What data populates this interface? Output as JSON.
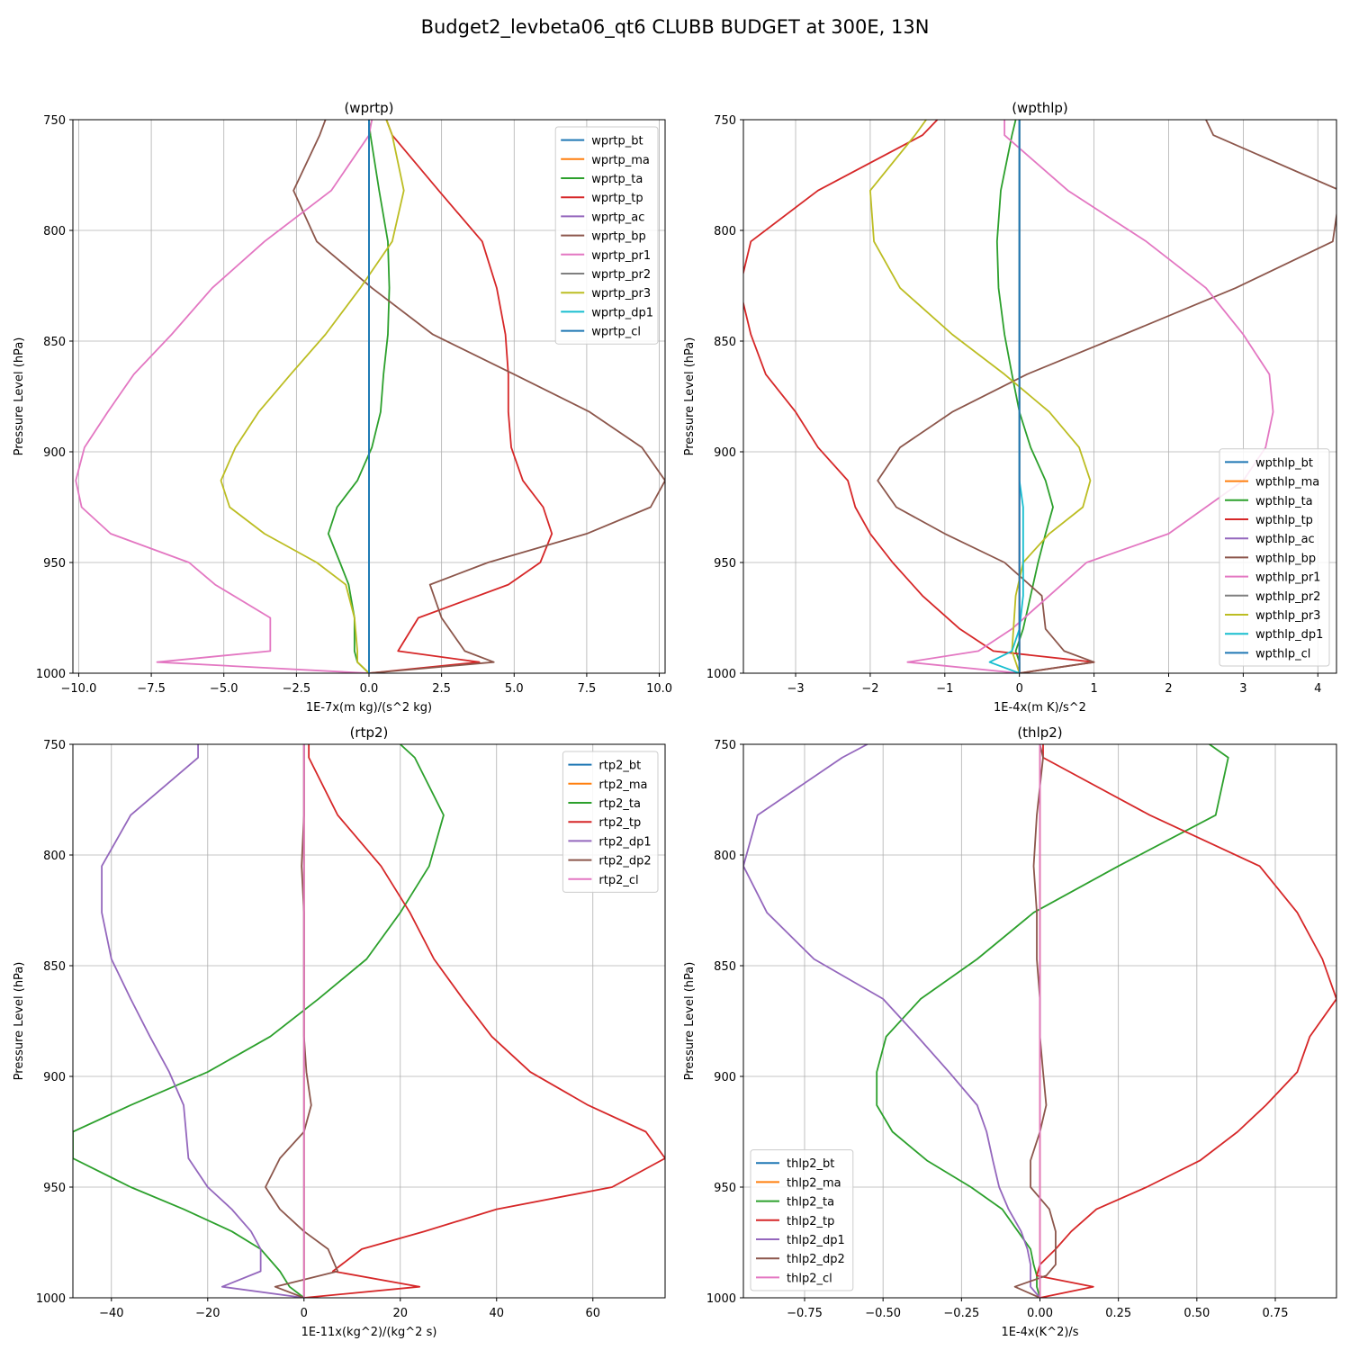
{
  "figure": {
    "suptitle": "Budget2_levbeta06_qt6 CLUBB BUDGET at 300E, 13N",
    "ylabel": "Pressure Level (hPa)"
  },
  "colors": {
    "blue": "#1f77b4",
    "orange": "#ff7f0e",
    "green": "#2ca02c",
    "red": "#d62728",
    "purple": "#9467bd",
    "brown": "#8c564b",
    "pink": "#e377c2",
    "gray": "#7f7f7f",
    "olive": "#bcbd22",
    "cyan": "#17becf",
    "grid": "#b0b0b0"
  },
  "chart_data": [
    {
      "type": "line",
      "title": "(wprtp)",
      "xlabel": "1E-7x(m kg)/(s^2 kg)",
      "ylabel": "Pressure Level (hPa)",
      "xlim": [
        -10.2,
        10.2
      ],
      "ylim": [
        1000,
        750
      ],
      "xticks": [
        -10.0,
        -7.5,
        -5.0,
        -2.5,
        0.0,
        2.5,
        5.0,
        7.5,
        10.0
      ],
      "xtick_labels": [
        "−10.0",
        "−7.5",
        "−5.0",
        "−2.5",
        "0.0",
        "2.5",
        "5.0",
        "7.5",
        "10.0"
      ],
      "yticks": [
        750,
        800,
        850,
        900,
        950,
        1000
      ],
      "grid": true,
      "legend_position": "upper right",
      "levels": [
        1000,
        995,
        990,
        975,
        960,
        950,
        937,
        925,
        913,
        898,
        882,
        865,
        847,
        826,
        805,
        782,
        757,
        750
      ],
      "series": [
        {
          "name": "wprtp_bt",
          "color": "#1f77b4",
          "values": [
            0,
            0,
            0,
            0,
            0,
            0,
            0,
            0,
            0,
            0,
            0,
            0,
            0,
            0,
            0,
            0,
            0,
            0
          ]
        },
        {
          "name": "wprtp_ma",
          "color": "#ff7f0e",
          "values": [
            0,
            0,
            0,
            0,
            0,
            0,
            0,
            0,
            0,
            0,
            0,
            0,
            0,
            0,
            0,
            0,
            0,
            0
          ]
        },
        {
          "name": "wprtp_ta",
          "color": "#2ca02c",
          "values": [
            0,
            -0.4,
            -0.5,
            -0.5,
            -0.7,
            -1.0,
            -1.4,
            -1.1,
            -0.4,
            0.1,
            0.4,
            0.5,
            0.65,
            0.7,
            0.65,
            0.35,
            0.05,
            0
          ]
        },
        {
          "name": "wprtp_tp",
          "color": "#d62728",
          "values": [
            0,
            3.8,
            1.0,
            1.7,
            4.8,
            5.9,
            6.3,
            6.0,
            5.3,
            4.9,
            4.8,
            4.8,
            4.7,
            4.4,
            3.9,
            2.4,
            0.8,
            0.6
          ]
        },
        {
          "name": "wprtp_ac",
          "color": "#9467bd",
          "values": [
            0,
            0,
            0,
            0,
            0,
            0,
            0,
            0,
            0,
            0,
            0,
            0,
            0,
            0,
            0,
            0,
            0,
            0
          ]
        },
        {
          "name": "wprtp_bp",
          "color": "#8c564b",
          "values": [
            0,
            4.3,
            3.3,
            2.5,
            2.1,
            4.1,
            7.5,
            9.7,
            10.2,
            9.4,
            7.6,
            5.0,
            2.2,
            0.1,
            -1.8,
            -2.6,
            -1.7,
            -1.5
          ]
        },
        {
          "name": "wprtp_pr1",
          "color": "#e377c2",
          "values": [
            0,
            -7.3,
            -3.4,
            -3.4,
            -5.3,
            -6.2,
            -8.9,
            -9.9,
            -10.1,
            -9.8,
            -9.0,
            -8.1,
            -6.8,
            -5.4,
            -3.6,
            -1.3,
            0,
            0.1
          ]
        },
        {
          "name": "wprtp_pr2",
          "color": "#7f7f7f",
          "values": [
            0,
            0,
            0,
            0,
            0,
            0,
            0,
            0,
            0,
            0,
            0,
            0,
            0,
            0,
            0,
            0,
            0,
            0
          ]
        },
        {
          "name": "wprtp_pr3",
          "color": "#bcbd22",
          "values": [
            0,
            -0.4,
            -0.4,
            -0.5,
            -0.8,
            -1.8,
            -3.6,
            -4.8,
            -5.1,
            -4.6,
            -3.8,
            -2.7,
            -1.5,
            -0.3,
            0.8,
            1.2,
            0.8,
            0.6
          ]
        },
        {
          "name": "wprtp_dp1",
          "color": "#17becf",
          "values": [
            0,
            0,
            0,
            0,
            0,
            0,
            0,
            0,
            0,
            0,
            0,
            0,
            0,
            0,
            0,
            0,
            0,
            0
          ]
        },
        {
          "name": "wprtp_cl",
          "color": "#1f77b4",
          "values": [
            0,
            0,
            0,
            0,
            0,
            0,
            0,
            0,
            0,
            0,
            0,
            0,
            0,
            0,
            0,
            0,
            0,
            0
          ]
        }
      ]
    },
    {
      "type": "line",
      "title": "(wpthlp)",
      "xlabel": "1E-4x(m K)/s^2",
      "ylabel": "Pressure Level (hPa)",
      "xlim": [
        -3.7,
        4.25
      ],
      "ylim": [
        1000,
        750
      ],
      "xticks": [
        -3,
        -2,
        -1,
        0,
        1,
        2,
        3,
        4
      ],
      "xtick_labels": [
        "−3",
        "−2",
        "−1",
        "0",
        "1",
        "2",
        "3",
        "4"
      ],
      "yticks": [
        750,
        800,
        850,
        900,
        950,
        1000
      ],
      "grid": true,
      "legend_position": "lower right",
      "levels": [
        1000,
        995,
        990,
        980,
        965,
        950,
        937,
        925,
        913,
        898,
        882,
        865,
        847,
        826,
        805,
        782,
        757,
        750
      ],
      "series": [
        {
          "name": "wpthlp_bt",
          "color": "#1f77b4",
          "values": [
            0,
            0,
            0,
            0,
            0,
            0,
            0,
            0,
            0,
            0,
            0,
            0,
            0,
            0,
            0,
            0,
            0,
            0
          ]
        },
        {
          "name": "wpthlp_ma",
          "color": "#ff7f0e",
          "values": [
            0,
            0,
            0,
            0,
            0,
            0,
            0,
            0,
            0,
            0,
            0,
            0,
            0,
            0,
            0,
            0,
            0,
            0
          ]
        },
        {
          "name": "wpthlp_ta",
          "color": "#2ca02c",
          "values": [
            0,
            0,
            -0.05,
            0.05,
            0.15,
            0.25,
            0.35,
            0.45,
            0.35,
            0.15,
            0,
            -0.1,
            -0.2,
            -0.28,
            -0.3,
            -0.25,
            -0.1,
            -0.05
          ]
        },
        {
          "name": "wpthlp_tp",
          "color": "#d62728",
          "values": [
            0,
            1.0,
            -0.35,
            -0.8,
            -1.3,
            -1.7,
            -2.0,
            -2.2,
            -2.3,
            -2.7,
            -3.0,
            -3.4,
            -3.6,
            -3.75,
            -3.6,
            -2.7,
            -1.3,
            -1.1
          ]
        },
        {
          "name": "wpthlp_ac",
          "color": "#9467bd",
          "values": [
            0,
            0,
            0,
            0,
            0,
            0,
            0,
            0,
            0,
            0,
            0,
            0,
            0,
            0,
            0,
            0,
            0,
            0
          ]
        },
        {
          "name": "wpthlp_bp",
          "color": "#8c564b",
          "values": [
            0,
            1.0,
            0.6,
            0.35,
            0.3,
            -0.2,
            -1.0,
            -1.65,
            -1.9,
            -1.6,
            -0.9,
            0.1,
            1.4,
            2.9,
            4.2,
            4.3,
            2.6,
            2.5
          ]
        },
        {
          "name": "wpthlp_pr1",
          "color": "#e377c2",
          "values": [
            0,
            -1.5,
            -0.55,
            -0.1,
            0.4,
            0.9,
            2.0,
            2.5,
            3.0,
            3.3,
            3.4,
            3.35,
            3.0,
            2.5,
            1.7,
            0.65,
            -0.2,
            -0.2
          ]
        },
        {
          "name": "wpthlp_pr2",
          "color": "#7f7f7f",
          "values": [
            0,
            0,
            0,
            0,
            0,
            0,
            0,
            0,
            0,
            0,
            0,
            0,
            0,
            0,
            0,
            0,
            0,
            0
          ]
        },
        {
          "name": "wpthlp_pr3",
          "color": "#bcbd22",
          "values": [
            0,
            -0.05,
            -0.1,
            -0.08,
            -0.05,
            0.05,
            0.4,
            0.85,
            0.95,
            0.8,
            0.4,
            -0.2,
            -0.9,
            -1.6,
            -1.95,
            -2.0,
            -1.4,
            -1.25
          ]
        },
        {
          "name": "wpthlp_dp1",
          "color": "#17becf",
          "values": [
            0,
            -0.4,
            -0.1,
            0,
            0.05,
            0.05,
            0.05,
            0.05,
            0,
            0,
            0,
            0,
            0,
            0,
            0,
            0,
            0,
            0
          ]
        },
        {
          "name": "wpthlp_cl",
          "color": "#1f77b4",
          "values": [
            0,
            0,
            0,
            0,
            0,
            0,
            0,
            0,
            0,
            0,
            0,
            0,
            0,
            0,
            0,
            0,
            0,
            0
          ]
        }
      ]
    },
    {
      "type": "line",
      "title": "(rtp2)",
      "xlabel": "1E-11x(kg^2)/(kg^2 s)",
      "ylabel": "Pressure Level (hPa)",
      "xlim": [
        -48,
        75
      ],
      "ylim": [
        1000,
        750
      ],
      "xticks": [
        -40,
        -20,
        0,
        20,
        40,
        60
      ],
      "xtick_labels": [
        "−40",
        "−20",
        "0",
        "20",
        "40",
        "60"
      ],
      "yticks": [
        750,
        800,
        850,
        900,
        950,
        1000
      ],
      "grid": true,
      "legend_position": "upper right",
      "levels": [
        1000,
        995,
        988,
        978,
        970,
        960,
        950,
        937,
        925,
        913,
        898,
        882,
        865,
        847,
        826,
        805,
        782,
        756,
        750
      ],
      "series": [
        {
          "name": "rtp2_bt",
          "color": "#1f77b4",
          "values": [
            0,
            0,
            0,
            0,
            0,
            0,
            0,
            0,
            0,
            0,
            0,
            0,
            0,
            0,
            0,
            0,
            0,
            0,
            0
          ]
        },
        {
          "name": "rtp2_ma",
          "color": "#ff7f0e",
          "values": [
            0,
            0,
            0,
            0,
            0,
            0,
            0,
            0,
            0,
            0,
            0,
            0,
            0,
            0,
            0,
            0,
            0,
            0,
            0
          ]
        },
        {
          "name": "rtp2_ta",
          "color": "#2ca02c",
          "values": [
            0,
            -3,
            -5,
            -9,
            -15,
            -25,
            -36,
            -48,
            -48,
            -36,
            -20,
            -7,
            3,
            13,
            20,
            26,
            29,
            23,
            20
          ]
        },
        {
          "name": "rtp2_tp",
          "color": "#d62728",
          "values": [
            0,
            24,
            6,
            12,
            25,
            40,
            64,
            75,
            71,
            59,
            47,
            39,
            33,
            27,
            22,
            16,
            7,
            1,
            1
          ]
        },
        {
          "name": "rtp2_dp1",
          "color": "#9467bd",
          "values": [
            0,
            -17,
            -9,
            -9,
            -11,
            -15,
            -20,
            -24,
            -24.5,
            -25,
            -28,
            -32,
            -36,
            -40,
            -42,
            -42,
            -36,
            -22,
            -22
          ]
        },
        {
          "name": "rtp2_dp2",
          "color": "#8c564b",
          "values": [
            0,
            -6,
            7,
            5,
            0,
            -5,
            -8,
            -5,
            0,
            1.5,
            0.5,
            0,
            0,
            0,
            0,
            -0.5,
            0,
            0,
            0
          ]
        },
        {
          "name": "rtp2_cl",
          "color": "#e377c2",
          "values": [
            0,
            0,
            0,
            0,
            0,
            0,
            0,
            0,
            0,
            0,
            0,
            0,
            0,
            0,
            0,
            0,
            0,
            0,
            0
          ]
        }
      ]
    },
    {
      "type": "line",
      "title": "(thlp2)",
      "xlabel": "1E-4x(K^2)/s",
      "ylabel": "Pressure Level (hPa)",
      "xlim": [
        -0.945,
        0.945
      ],
      "ylim": [
        1000,
        750
      ],
      "xticks": [
        -0.75,
        -0.5,
        -0.25,
        0.0,
        0.25,
        0.5,
        0.75
      ],
      "xtick_labels": [
        "−0.75",
        "−0.50",
        "−0.25",
        "0.00",
        "0.25",
        "0.50",
        "0.75"
      ],
      "yticks": [
        750,
        800,
        850,
        900,
        950,
        1000
      ],
      "grid": true,
      "legend_position": "lower left",
      "levels": [
        1000,
        995,
        990,
        985,
        978,
        970,
        960,
        950,
        938,
        925,
        913,
        898,
        882,
        865,
        847,
        826,
        805,
        782,
        756,
        750
      ],
      "series": [
        {
          "name": "thlp2_bt",
          "color": "#1f77b4",
          "values": [
            0,
            0,
            0,
            0,
            0,
            0,
            0,
            0,
            0,
            0,
            0,
            0,
            0,
            0,
            0,
            0,
            0,
            0,
            0,
            0
          ]
        },
        {
          "name": "thlp2_ma",
          "color": "#ff7f0e",
          "values": [
            0,
            0,
            0,
            0,
            0,
            0,
            0,
            0,
            0,
            0,
            0,
            0,
            0,
            0,
            0,
            0,
            0,
            0,
            0,
            0
          ]
        },
        {
          "name": "thlp2_ta",
          "color": "#2ca02c",
          "values": [
            0,
            -0.01,
            -0.01,
            -0.02,
            -0.03,
            -0.07,
            -0.12,
            -0.22,
            -0.36,
            -0.47,
            -0.52,
            -0.52,
            -0.49,
            -0.38,
            -0.2,
            -0.02,
            0.25,
            0.56,
            0.6,
            0.54
          ]
        },
        {
          "name": "thlp2_tp",
          "color": "#d62728",
          "values": [
            0,
            0.17,
            -0.01,
            0,
            0.05,
            0.1,
            0.18,
            0.34,
            0.51,
            0.63,
            0.72,
            0.82,
            0.86,
            0.945,
            0.9,
            0.82,
            0.7,
            0.35,
            0.01,
            0.01
          ]
        },
        {
          "name": "thlp2_dp1",
          "color": "#9467bd",
          "values": [
            0,
            -0.03,
            -0.03,
            -0.03,
            -0.04,
            -0.06,
            -0.1,
            -0.13,
            -0.15,
            -0.17,
            -0.2,
            -0.29,
            -0.39,
            -0.5,
            -0.72,
            -0.87,
            -0.945,
            -0.9,
            -0.63,
            -0.55
          ]
        },
        {
          "name": "thlp2_dp2",
          "color": "#8c564b",
          "values": [
            0,
            -0.08,
            0.02,
            0.05,
            0.05,
            0.05,
            0.03,
            -0.03,
            -0.03,
            0,
            0.02,
            0.01,
            0,
            0,
            -0.01,
            -0.01,
            -0.02,
            -0.01,
            0.01,
            0
          ]
        },
        {
          "name": "thlp2_cl",
          "color": "#e377c2",
          "values": [
            0,
            0,
            0,
            0,
            0,
            0,
            0,
            0,
            0,
            0,
            0,
            0,
            0,
            0,
            0,
            0,
            0,
            0,
            0,
            0
          ]
        }
      ]
    }
  ]
}
